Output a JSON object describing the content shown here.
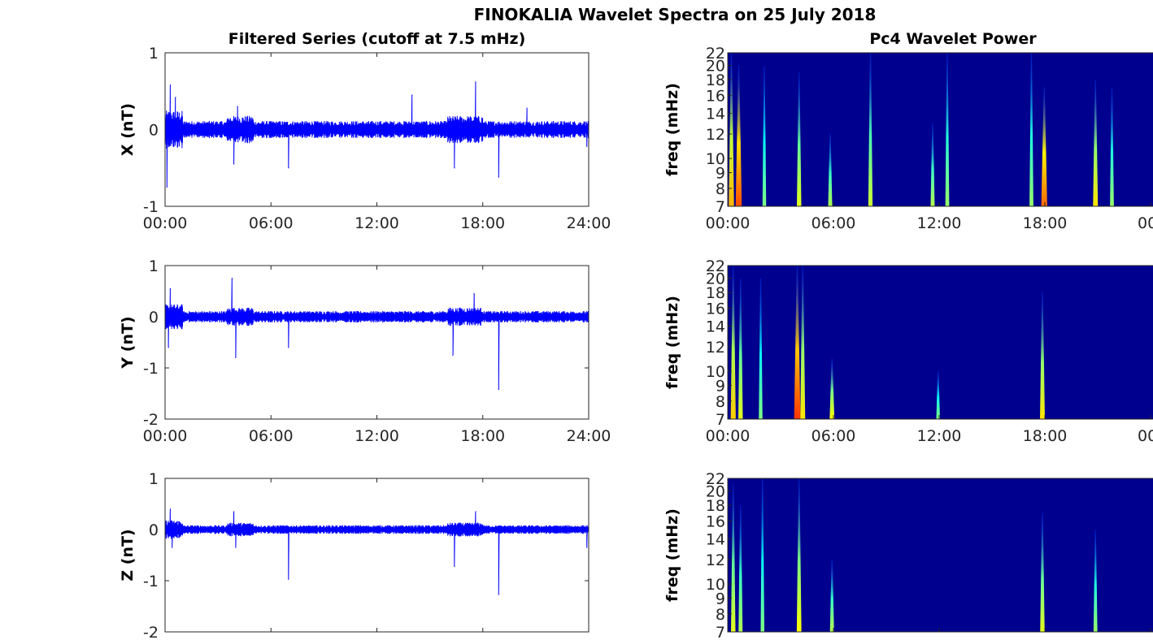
{
  "figure_title": "FINOKALIA Wavelet Spectra on 25 July 2018",
  "colors": {
    "trace": "#0000ff",
    "background_power": "#00008f"
  },
  "chart_data": [
    {
      "type": "line",
      "name": "x-series",
      "title": "Filtered Series (cutoff at 7.5 mHz)",
      "ylabel": "X (nT)",
      "xlim": [
        "00:00",
        "24:00"
      ],
      "ylim": [
        -1,
        1
      ],
      "xticks": [
        "00:00",
        "06:00",
        "12:00",
        "18:00",
        "24:00"
      ],
      "yticks": [
        "1",
        "0",
        "-1"
      ],
      "noise_band": 0.08,
      "spikes": [
        {
          "t": 0.1,
          "v": -0.75
        },
        {
          "t": 0.3,
          "v": 0.58
        },
        {
          "t": 0.6,
          "v": 0.42
        },
        {
          "t": 3.9,
          "v": -0.45
        },
        {
          "t": 4.1,
          "v": 0.3
        },
        {
          "t": 7.0,
          "v": -0.5
        },
        {
          "t": 14.0,
          "v": 0.45
        },
        {
          "t": 16.4,
          "v": -0.5
        },
        {
          "t": 17.6,
          "v": 0.62
        },
        {
          "t": 18.9,
          "v": -0.62
        },
        {
          "t": 20.5,
          "v": 0.28
        },
        {
          "t": 23.9,
          "v": -0.22
        }
      ]
    },
    {
      "type": "line",
      "name": "y-series",
      "title": "",
      "ylabel": "Y (nT)",
      "xlim": [
        "00:00",
        "24:00"
      ],
      "ylim": [
        -2,
        1
      ],
      "xticks": [
        "00:00",
        "06:00",
        "12:00",
        "18:00",
        "24:00"
      ],
      "yticks": [
        "1",
        "0",
        "-1",
        "-2"
      ],
      "noise_band": 0.08,
      "spikes": [
        {
          "t": 0.2,
          "v": -0.6
        },
        {
          "t": 0.3,
          "v": 0.55
        },
        {
          "t": 3.8,
          "v": 0.75
        },
        {
          "t": 4.0,
          "v": -0.8
        },
        {
          "t": 7.0,
          "v": -0.6
        },
        {
          "t": 16.3,
          "v": -0.75
        },
        {
          "t": 17.5,
          "v": 0.45
        },
        {
          "t": 18.9,
          "v": -1.42
        }
      ]
    },
    {
      "type": "line",
      "name": "z-series",
      "title": "",
      "ylabel": "Z (nT)",
      "xlim": [
        "00:00",
        "24:00"
      ],
      "ylim": [
        -2,
        1
      ],
      "xticks": [],
      "yticks": [
        "1",
        "0",
        "-1",
        "-2"
      ],
      "noise_band": 0.06,
      "spikes": [
        {
          "t": 0.3,
          "v": 0.4
        },
        {
          "t": 0.4,
          "v": -0.35
        },
        {
          "t": 3.9,
          "v": 0.35
        },
        {
          "t": 4.0,
          "v": -0.35
        },
        {
          "t": 7.0,
          "v": -0.97
        },
        {
          "t": 16.4,
          "v": -0.72
        },
        {
          "t": 17.6,
          "v": 0.35
        },
        {
          "t": 18.9,
          "v": -1.27
        },
        {
          "t": 23.9,
          "v": -0.35
        }
      ]
    },
    {
      "type": "heatmap",
      "name": "x-power",
      "title": "Pc4 Wavelet Power",
      "ylabel": "freq (mHz)",
      "ylim": [
        7,
        22
      ],
      "ylog": true,
      "xticks": [
        "00:00",
        "06:00",
        "12:00",
        "18:00",
        "00"
      ],
      "yticks": [
        "22",
        "20",
        "18",
        "16",
        "14",
        "12",
        "10",
        "9",
        "8",
        "7"
      ],
      "streaks": [
        {
          "t": 0.2,
          "top": 22,
          "p": 0.7
        },
        {
          "t": 0.6,
          "top": 20,
          "p": 0.9
        },
        {
          "t": 2.0,
          "top": 20,
          "p": 0.3
        },
        {
          "t": 3.9,
          "top": 19,
          "p": 0.5
        },
        {
          "t": 5.6,
          "top": 12,
          "p": 0.4
        },
        {
          "t": 7.8,
          "top": 22,
          "p": 0.45
        },
        {
          "t": 11.2,
          "top": 13,
          "p": 0.4
        },
        {
          "t": 12.0,
          "top": 22,
          "p": 0.35
        },
        {
          "t": 16.6,
          "top": 22,
          "p": 0.35
        },
        {
          "t": 17.3,
          "top": 17,
          "p": 0.85
        },
        {
          "t": 20.1,
          "top": 18,
          "p": 0.6
        },
        {
          "t": 21.0,
          "top": 17,
          "p": 0.35
        }
      ]
    },
    {
      "type": "heatmap",
      "name": "y-power",
      "title": "",
      "ylabel": "freq (mHz)",
      "ylim": [
        7,
        22
      ],
      "ylog": true,
      "xticks": [
        "00:00",
        "06:00",
        "12:00",
        "18:00",
        "00"
      ],
      "yticks": [
        "22",
        "20",
        "18",
        "16",
        "14",
        "12",
        "10",
        "9",
        "8",
        "7"
      ],
      "streaks": [
        {
          "t": 0.3,
          "top": 22,
          "p": 0.65
        },
        {
          "t": 0.7,
          "top": 20,
          "p": 0.5
        },
        {
          "t": 1.8,
          "top": 20,
          "p": 0.3
        },
        {
          "t": 3.8,
          "top": 22,
          "p": 0.95
        },
        {
          "t": 4.1,
          "top": 22,
          "p": 0.6
        },
        {
          "t": 5.7,
          "top": 11,
          "p": 0.55
        },
        {
          "t": 11.5,
          "top": 10,
          "p": 0.3
        },
        {
          "t": 17.2,
          "top": 18,
          "p": 0.6
        }
      ]
    },
    {
      "type": "heatmap",
      "name": "z-power",
      "title": "",
      "ylabel": "freq (mHz)",
      "ylim": [
        7,
        22
      ],
      "ylog": true,
      "xticks": [],
      "yticks": [
        "22",
        "20",
        "18",
        "16",
        "14",
        "12",
        "10",
        "9",
        "8",
        "7"
      ],
      "streaks": [
        {
          "t": 0.3,
          "top": 21,
          "p": 0.5
        },
        {
          "t": 0.7,
          "top": 18,
          "p": 0.4
        },
        {
          "t": 1.9,
          "top": 22,
          "p": 0.3
        },
        {
          "t": 3.9,
          "top": 22,
          "p": 0.55
        },
        {
          "t": 5.7,
          "top": 12,
          "p": 0.4
        },
        {
          "t": 17.2,
          "top": 17,
          "p": 0.5
        },
        {
          "t": 20.1,
          "top": 15,
          "p": 0.35
        }
      ]
    }
  ]
}
